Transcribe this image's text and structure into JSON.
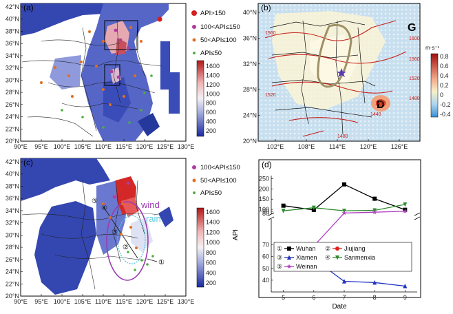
{
  "panels": {
    "a": {
      "label": "(a)",
      "lat_ticks": [
        "42°N",
        "40°N",
        "38°N",
        "36°N",
        "34°N",
        "32°N",
        "30°N",
        "28°N",
        "26°N",
        "24°N",
        "22°N",
        "20°N"
      ],
      "lon_ticks": [
        "90°E",
        "95°E",
        "100°E",
        "105°E",
        "110°E",
        "115°E",
        "120°E",
        "125°E",
        "130°E"
      ],
      "legend": [
        "API>150",
        "100<API≤150",
        "50<API≤100",
        "API≤50"
      ],
      "colorbar": [
        "1600",
        "1400",
        "1200",
        "1000",
        "800",
        "600",
        "400",
        "200"
      ]
    },
    "b": {
      "label": "(b)",
      "lat_ticks": [
        "40°N",
        "36°N",
        "32°N",
        "28°N",
        "24°N",
        "20°N"
      ],
      "lon_ticks": [
        "102°E",
        "108°E",
        "114°E",
        "120°E",
        "126°E"
      ],
      "letter_g": "G",
      "letter_d": "D",
      "contours": [
        "1560",
        "1600",
        "1560",
        "1520",
        "1480",
        "1520",
        "1480",
        "1440",
        "1420"
      ],
      "colorbar_unit": "m·s⁻¹",
      "colorbar": [
        "0.8",
        "0.6",
        "0.4",
        "0.2",
        "0",
        "-0.2",
        "-0.4"
      ]
    },
    "c": {
      "label": "(c)",
      "lat_ticks": [
        "42°N",
        "40°N",
        "38°N",
        "36°N",
        "34°N",
        "32°N",
        "30°N",
        "28°N",
        "26°N",
        "24°N",
        "22°N",
        "20°N"
      ],
      "lon_ticks": [
        "90°E",
        "95°E",
        "100°E",
        "105°E",
        "110°E",
        "115°E",
        "120°E",
        "125°E",
        "130°E"
      ],
      "legend": [
        "100<API≤150",
        "50<API≤100",
        "API≤50"
      ],
      "wind": "wind",
      "rain": "rain",
      "site_markers": [
        "⑤",
        "④",
        "③",
        "②",
        "①"
      ],
      "colorbar": [
        "1600",
        "1400",
        "1200",
        "1000",
        "800",
        "600",
        "400",
        "200"
      ]
    }
  },
  "chart_data": {
    "panel_label": "(d)",
    "type": "line",
    "x": [
      5,
      6,
      7,
      8,
      9
    ],
    "xlabel": "Date",
    "ylabel": "API",
    "y_ticks_lower": [
      40,
      50,
      60,
      70,
      80,
      90
    ],
    "y_ticks_upper": [
      100,
      150,
      200,
      250
    ],
    "ylim_lower": [
      30,
      92
    ],
    "ylim_upper": [
      80,
      265
    ],
    "broken_axis": true,
    "series": [
      {
        "name": "Wuhan",
        "marker": "①",
        "color": "#000000",
        "shape": "square",
        "values": [
          118,
          97,
          222,
          152,
          98
        ]
      },
      {
        "name": "Jiujiang",
        "marker": "②",
        "color": "#e02020",
        "shape": "circle",
        "values": [
          63,
          63,
          69,
          55,
          54
        ]
      },
      {
        "name": "Xiamen",
        "marker": "③",
        "color": "#2030c0",
        "shape": "triangle-up",
        "values": [
          51,
          58,
          39,
          38,
          35
        ]
      },
      {
        "name": "Sanmenxia",
        "marker": "④",
        "color": "#2e8b2e",
        "shape": "triangle-down",
        "values": [
          93,
          108,
          93,
          95,
          124
        ]
      },
      {
        "name": "Weinan",
        "marker": "⑤",
        "color": "#b040c0",
        "shape": "star",
        "values": [
          62,
          69,
          82,
          86,
          91
        ]
      }
    ]
  }
}
